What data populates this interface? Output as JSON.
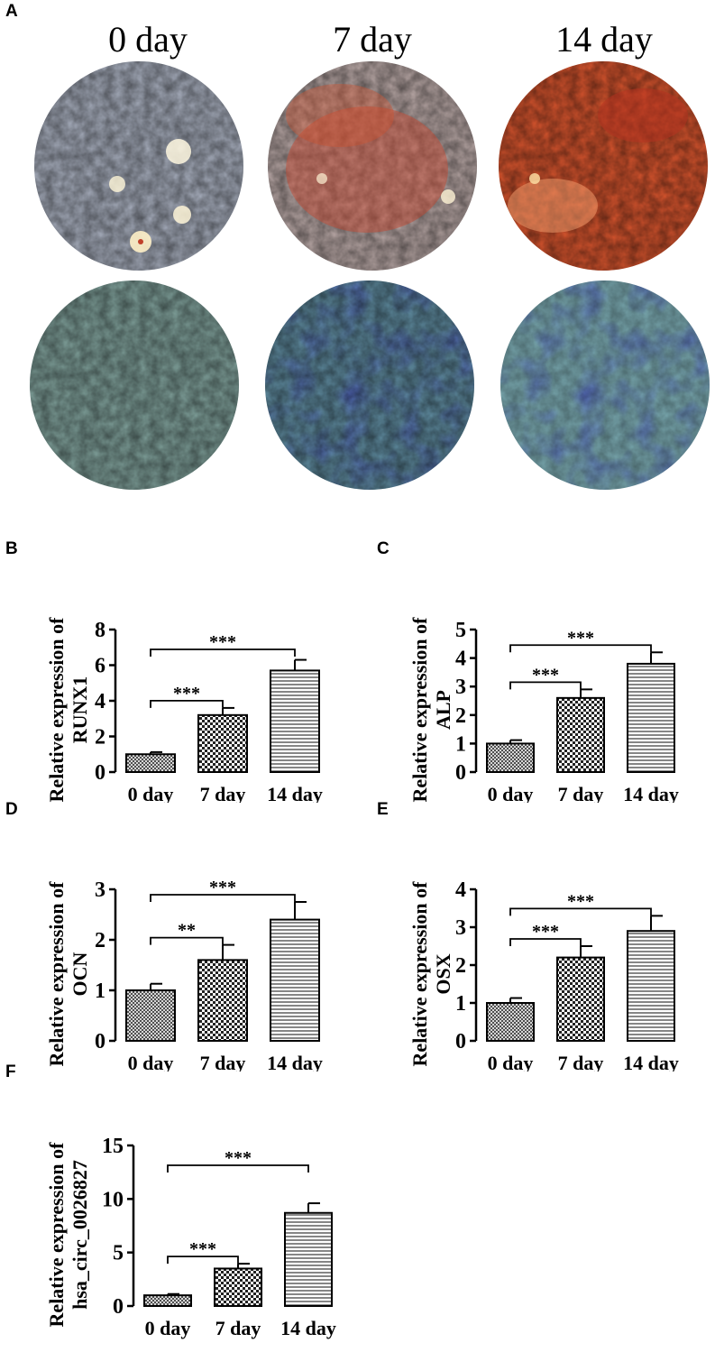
{
  "panel_a": {
    "letter": "A",
    "days": [
      "0 day",
      "7 day",
      "14 day"
    ]
  },
  "chart_data": [
    {
      "id": "B",
      "type": "bar",
      "title": "",
      "ylabel": [
        "Relative expression of",
        "RUNX1"
      ],
      "categories": [
        "0 day",
        "7 day",
        "14 day"
      ],
      "values": [
        1.0,
        3.2,
        5.7
      ],
      "errors": [
        0.12,
        0.4,
        0.6
      ],
      "ylim": [
        0,
        8
      ],
      "yticks": [
        0,
        2,
        4,
        6,
        8
      ],
      "significance": [
        {
          "from": 0,
          "to": 1,
          "label": "***"
        },
        {
          "from": 0,
          "to": 2,
          "label": "***"
        }
      ]
    },
    {
      "id": "C",
      "type": "bar",
      "title": "",
      "ylabel": [
        "Relative expression of",
        "ALP"
      ],
      "categories": [
        "0 day",
        "7 day",
        "14 day"
      ],
      "values": [
        1.0,
        2.6,
        3.8
      ],
      "errors": [
        0.12,
        0.3,
        0.4
      ],
      "ylim": [
        0,
        5
      ],
      "yticks": [
        0,
        1,
        2,
        3,
        4,
        5
      ],
      "significance": [
        {
          "from": 0,
          "to": 1,
          "label": "***"
        },
        {
          "from": 0,
          "to": 2,
          "label": "***"
        }
      ]
    },
    {
      "id": "D",
      "type": "bar",
      "title": "",
      "ylabel": [
        "Relative expression of",
        "OCN"
      ],
      "categories": [
        "0 day",
        "7 day",
        "14 day"
      ],
      "values": [
        1.0,
        1.6,
        2.4
      ],
      "errors": [
        0.13,
        0.3,
        0.35
      ],
      "ylim": [
        0,
        3
      ],
      "yticks": [
        0,
        1,
        2,
        3
      ],
      "significance": [
        {
          "from": 0,
          "to": 1,
          "label": "**"
        },
        {
          "from": 0,
          "to": 2,
          "label": "***"
        }
      ]
    },
    {
      "id": "E",
      "type": "bar",
      "title": "",
      "ylabel": [
        "Relative expression of",
        "OSX"
      ],
      "categories": [
        "0 day",
        "7 day",
        "14 day"
      ],
      "values": [
        1.0,
        2.2,
        2.9
      ],
      "errors": [
        0.13,
        0.3,
        0.4
      ],
      "ylim": [
        0,
        4
      ],
      "yticks": [
        0,
        1,
        2,
        3,
        4
      ],
      "significance": [
        {
          "from": 0,
          "to": 1,
          "label": "***"
        },
        {
          "from": 0,
          "to": 2,
          "label": "***"
        }
      ]
    },
    {
      "id": "F",
      "type": "bar",
      "title": "",
      "ylabel": [
        "Relative expression of",
        "hsa_circ_0026827"
      ],
      "categories": [
        "0 day",
        "7 day",
        "14 day"
      ],
      "values": [
        1.0,
        3.5,
        8.7
      ],
      "errors": [
        0.12,
        0.45,
        0.9
      ],
      "ylim": [
        0,
        15
      ],
      "yticks": [
        0,
        5,
        10,
        15
      ],
      "significance": [
        {
          "from": 0,
          "to": 1,
          "label": "***"
        },
        {
          "from": 0,
          "to": 2,
          "label": "***"
        }
      ]
    }
  ]
}
